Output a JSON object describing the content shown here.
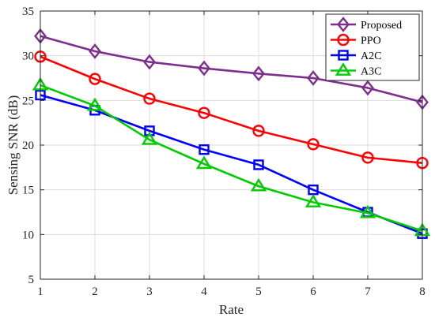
{
  "chart_data": {
    "type": "line",
    "xlabel": "Rate",
    "ylabel": "Sensing SNR (dB)",
    "xlim": [
      1,
      8
    ],
    "ylim": [
      5,
      35
    ],
    "x": [
      1,
      2,
      3,
      4,
      5,
      6,
      7,
      8
    ],
    "xticks": [
      "1",
      "2",
      "3",
      "4",
      "5",
      "6",
      "7",
      "8"
    ],
    "yticks": [
      "5",
      "10",
      "15",
      "20",
      "25",
      "30",
      "35"
    ],
    "grid": true,
    "legend_position": "top-right",
    "series": [
      {
        "name": "Proposed",
        "color": "#7E2F8E",
        "marker": "diamond",
        "values": [
          32.2,
          30.5,
          29.3,
          28.6,
          28.0,
          27.5,
          26.4,
          24.8
        ]
      },
      {
        "name": "PPO",
        "color": "#FF0000",
        "marker": "circle",
        "values": [
          29.9,
          27.4,
          25.2,
          23.6,
          21.6,
          20.1,
          18.6,
          18.0
        ]
      },
      {
        "name": "A2C",
        "color": "#0000FF",
        "marker": "square",
        "values": [
          25.6,
          23.9,
          21.6,
          19.5,
          17.8,
          15.0,
          12.5,
          10.1
        ]
      },
      {
        "name": "A3C",
        "color": "#00CC00",
        "marker": "triangle",
        "values": [
          26.7,
          24.4,
          20.6,
          17.9,
          15.4,
          13.6,
          12.4,
          10.4
        ]
      }
    ]
  }
}
